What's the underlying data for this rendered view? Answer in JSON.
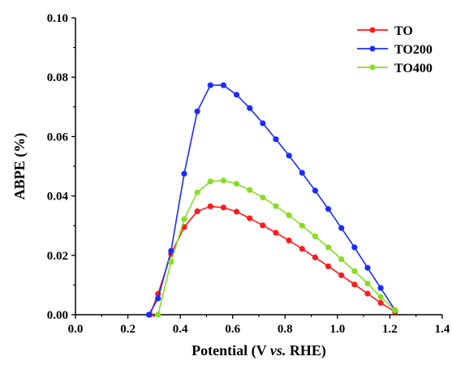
{
  "chart_data": {
    "type": "line",
    "xlabel_parts": [
      "Potential (V ",
      "vs.",
      " RHE)"
    ],
    "ylabel": "ABPE (%)",
    "xlim": [
      0.0,
      1.4
    ],
    "ylim": [
      0.0,
      0.1
    ],
    "xticks": [
      "0.0",
      "0.2",
      "0.4",
      "0.6",
      "0.8",
      "1.0",
      "1.2",
      "1.4"
    ],
    "yticks": [
      "0.00",
      "0.02",
      "0.04",
      "0.06",
      "0.08",
      "0.10"
    ],
    "legend_position": "top-right",
    "grid": false,
    "series": [
      {
        "name": "TO",
        "color": "#ff1a1a",
        "x": [
          0.285,
          0.315,
          0.365,
          0.415,
          0.465,
          0.515,
          0.565,
          0.615,
          0.665,
          0.715,
          0.765,
          0.815,
          0.865,
          0.915,
          0.965,
          1.015,
          1.065,
          1.115,
          1.165,
          1.22
        ],
        "y": [
          0.0,
          0.007,
          0.0205,
          0.0295,
          0.0348,
          0.0365,
          0.0361,
          0.0347,
          0.0325,
          0.0301,
          0.0276,
          0.025,
          0.0222,
          0.0193,
          0.0163,
          0.0133,
          0.0102,
          0.0071,
          0.004,
          0.001
        ]
      },
      {
        "name": "TO200",
        "color": "#1a2bff",
        "x": [
          0.28,
          0.315,
          0.365,
          0.415,
          0.465,
          0.515,
          0.565,
          0.615,
          0.665,
          0.715,
          0.765,
          0.815,
          0.865,
          0.915,
          0.965,
          1.015,
          1.065,
          1.115,
          1.165,
          1.22
        ],
        "y": [
          0.0,
          0.0055,
          0.0215,
          0.0475,
          0.0685,
          0.0773,
          0.0773,
          0.0741,
          0.0696,
          0.0645,
          0.0591,
          0.0536,
          0.0478,
          0.0418,
          0.0356,
          0.0292,
          0.0227,
          0.0158,
          0.009,
          0.0015
        ]
      },
      {
        "name": "TO400",
        "color": "#88dd22",
        "x": [
          0.315,
          0.365,
          0.415,
          0.465,
          0.515,
          0.565,
          0.615,
          0.665,
          0.715,
          0.765,
          0.815,
          0.865,
          0.915,
          0.965,
          1.015,
          1.065,
          1.115,
          1.165,
          1.22
        ],
        "y": [
          0.0,
          0.0178,
          0.0322,
          0.0412,
          0.0449,
          0.0452,
          0.0441,
          0.042,
          0.0395,
          0.0366,
          0.0335,
          0.03,
          0.0264,
          0.0227,
          0.0187,
          0.0147,
          0.0105,
          0.006,
          0.0015
        ]
      }
    ]
  }
}
